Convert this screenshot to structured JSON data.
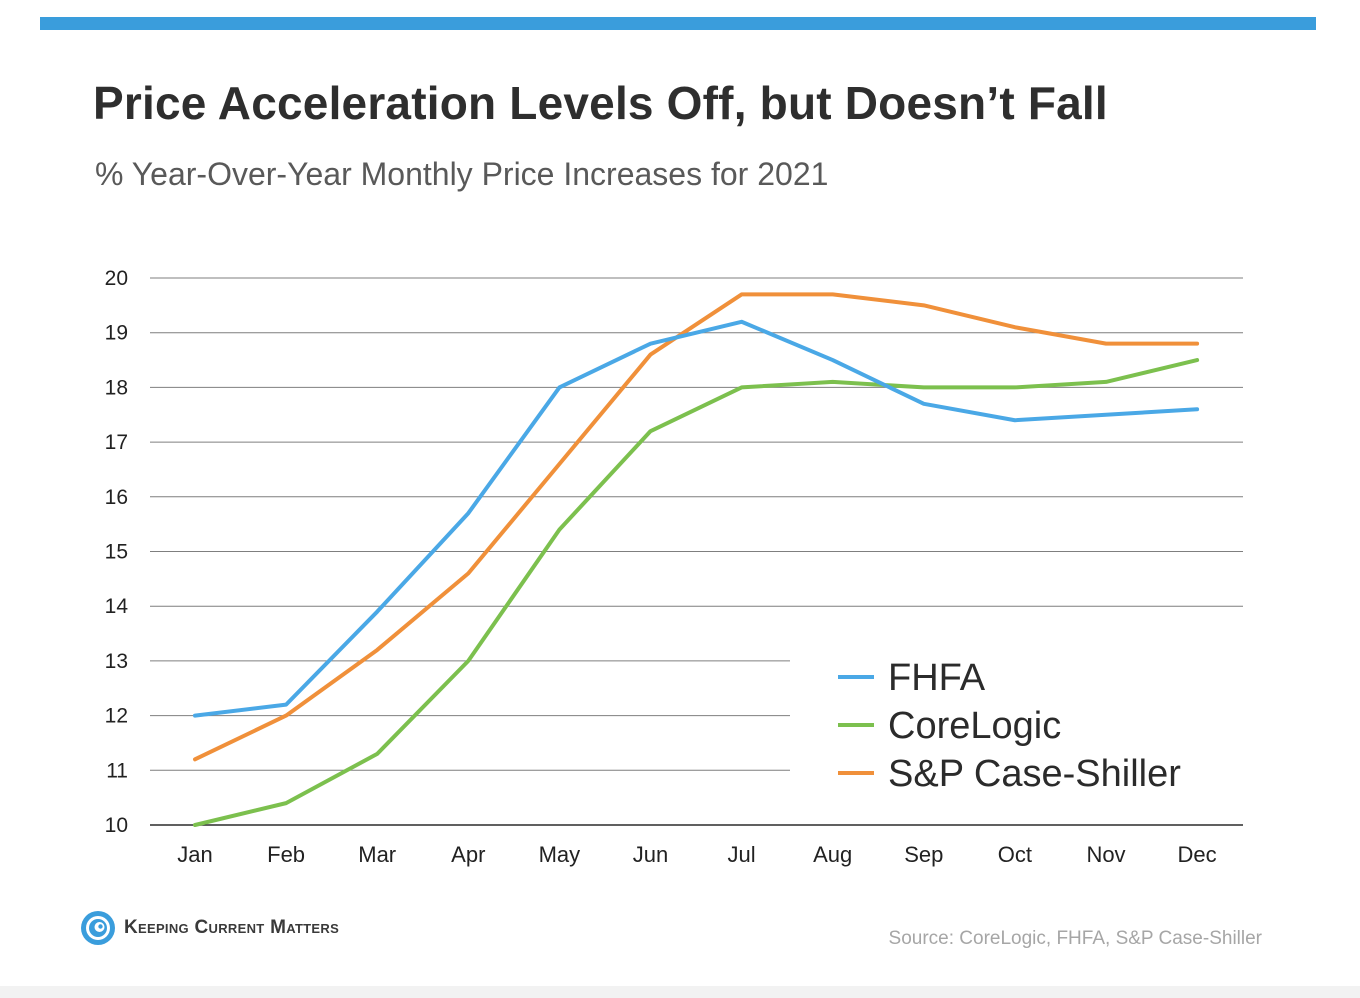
{
  "header": {
    "title": "Price Acceleration Levels Off, but Doesn’t Fall",
    "subtitle": "% Year-Over-Year Monthly Price Increases for 2021"
  },
  "colors": {
    "top_bar": "#3a9ddc",
    "fhfa": "#4aa8e6",
    "corelogic": "#7cc04e",
    "case_shiller": "#f0903a"
  },
  "chart_data": {
    "type": "line",
    "x": [
      "Jan",
      "Feb",
      "Mar",
      "Apr",
      "May",
      "Jun",
      "Jul",
      "Aug",
      "Sep",
      "Oct",
      "Nov",
      "Dec"
    ],
    "ylim": [
      10,
      20
    ],
    "yticks": [
      10,
      11,
      12,
      13,
      14,
      15,
      16,
      17,
      18,
      19,
      20
    ],
    "grid": true,
    "legend_position": "bottom-right",
    "series": [
      {
        "name": "FHFA",
        "color": "#4aa8e6",
        "values": [
          12.0,
          12.2,
          13.9,
          15.7,
          18.0,
          18.8,
          19.2,
          18.5,
          17.7,
          17.4,
          17.5,
          17.6
        ]
      },
      {
        "name": "CoreLogic",
        "color": "#7cc04e",
        "values": [
          10.0,
          10.4,
          11.3,
          13.0,
          15.4,
          17.2,
          18.0,
          18.1,
          18.0,
          18.0,
          18.1,
          18.5
        ]
      },
      {
        "name": "S&P Case-Shiller",
        "color": "#f0903a",
        "values": [
          11.2,
          12.0,
          13.2,
          14.6,
          16.6,
          18.6,
          19.7,
          19.7,
          19.5,
          19.1,
          18.8,
          18.8
        ]
      }
    ]
  },
  "footer": {
    "logo_text": "Keeping Current Matters",
    "source": "Source: CoreLogic, FHFA, S&P Case-Shiller"
  }
}
